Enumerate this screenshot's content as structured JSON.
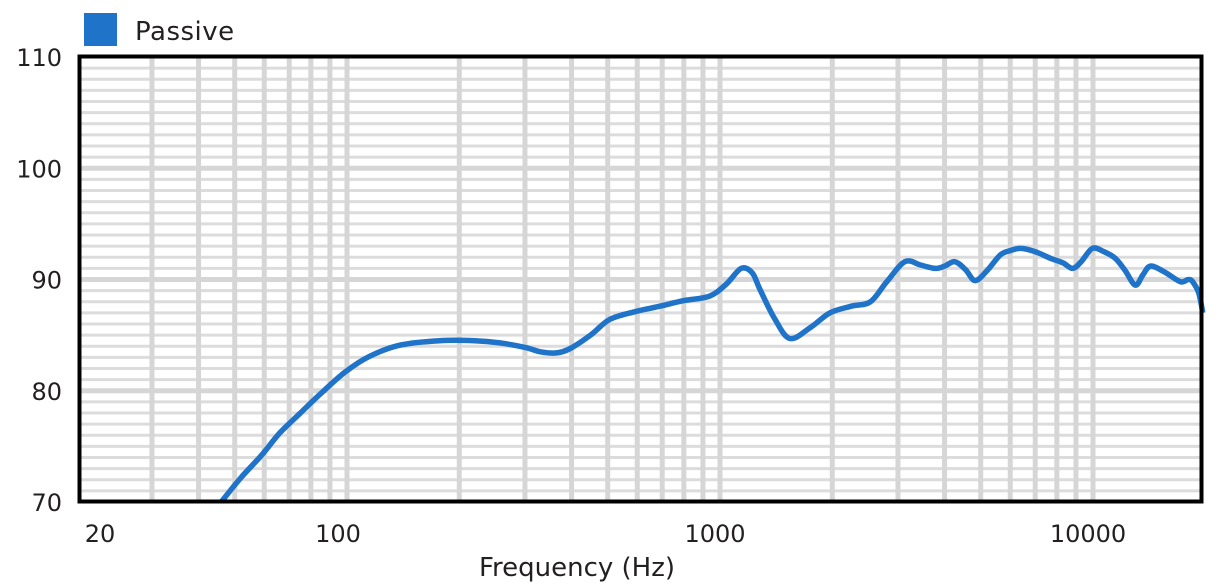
{
  "chart_data": {
    "type": "line",
    "title": "",
    "xlabel": "Frequency (Hz)",
    "ylabel": "",
    "xscale": "log",
    "xlim": [
      20,
      20000
    ],
    "ylim": [
      70,
      110
    ],
    "grid": true,
    "legend": {
      "position": "top-left",
      "entries": [
        {
          "name": "Passive",
          "color": "#1f73c8"
        }
      ]
    },
    "x_ticks": [
      {
        "value": 20,
        "label": "20"
      },
      {
        "value": 100,
        "label": "100"
      },
      {
        "value": 1000,
        "label": "1000"
      },
      {
        "value": 10000,
        "label": "10000"
      }
    ],
    "y_ticks": [
      {
        "value": 70,
        "label": "70"
      },
      {
        "value": 80,
        "label": "80"
      },
      {
        "value": 90,
        "label": "90"
      },
      {
        "value": 100,
        "label": "100"
      },
      {
        "value": 110,
        "label": "110"
      }
    ],
    "series": [
      {
        "name": "Passive",
        "color": "#1f73c8",
        "x": [
          46,
          52,
          59,
          66,
          75,
          86,
          99,
          115,
          139,
          177,
          220,
          257,
          300,
          330,
          365,
          397,
          450,
          506,
          590,
          690,
          800,
          937,
          1040,
          1140,
          1220,
          1280,
          1400,
          1540,
          1750,
          1970,
          2250,
          2530,
          2800,
          3130,
          3450,
          3770,
          4000,
          4260,
          4550,
          4830,
          5200,
          5640,
          6000,
          6400,
          7000,
          7700,
          8300,
          8820,
          9300,
          9960,
          10700,
          11480,
          12200,
          12980,
          13600,
          14250,
          15500,
          17150,
          18000,
          18500,
          19200,
          19700
        ],
        "values": [
          70.0,
          72.2,
          74.2,
          76.2,
          78.0,
          79.9,
          81.7,
          83.1,
          84.1,
          84.5,
          84.5,
          84.3,
          83.9,
          83.5,
          83.4,
          83.8,
          85.0,
          86.4,
          87.1,
          87.6,
          88.1,
          88.5,
          89.6,
          91.0,
          90.6,
          89.1,
          86.5,
          84.7,
          85.7,
          87.0,
          87.6,
          88.0,
          89.8,
          91.6,
          91.3,
          91.0,
          91.2,
          91.6,
          90.9,
          89.9,
          90.8,
          92.2,
          92.6,
          92.8,
          92.5,
          91.9,
          91.5,
          91.0,
          91.6,
          92.8,
          92.5,
          91.9,
          90.8,
          89.5,
          90.4,
          91.2,
          90.7,
          89.8,
          90.0,
          89.8,
          88.8,
          87.0
        ]
      }
    ]
  }
}
